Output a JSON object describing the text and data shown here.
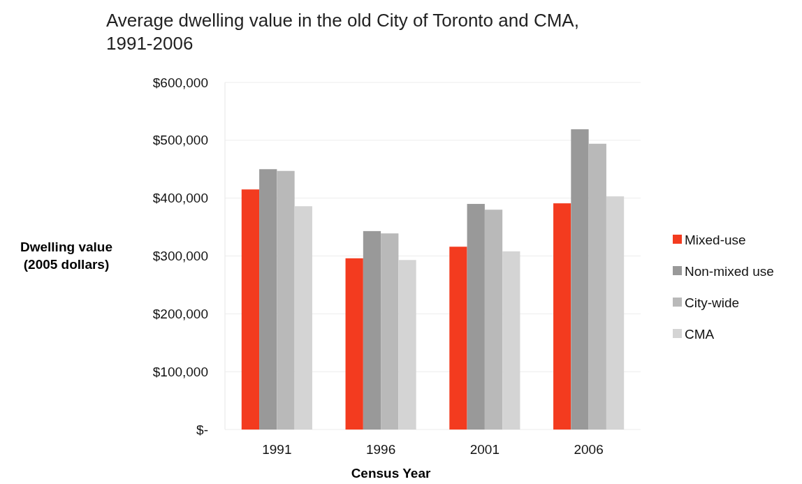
{
  "chart_data": {
    "type": "bar",
    "title": "Average dwelling value in the old City of Toronto and CMA, 1991-2006",
    "xlabel": "Census Year",
    "ylabel": "Dwelling value (2005 dollars)",
    "categories": [
      "1991",
      "1996",
      "2001",
      "2006"
    ],
    "series": [
      {
        "name": "Mixed-use",
        "color": "#f33b1f",
        "values": [
          415000,
          296000,
          316000,
          391000
        ]
      },
      {
        "name": "Non-mixed use",
        "color": "#999999",
        "values": [
          450000,
          343000,
          390000,
          519000
        ]
      },
      {
        "name": "City-wide",
        "color": "#b9b9b9",
        "values": [
          447000,
          339000,
          380000,
          494000
        ]
      },
      {
        "name": "CMA",
        "color": "#d4d4d4",
        "values": [
          386000,
          293000,
          308000,
          403000
        ]
      }
    ],
    "ylim": [
      0,
      600000
    ],
    "yticks": [
      {
        "value": 0,
        "label": "$-"
      },
      {
        "value": 100000,
        "label": "$100,000"
      },
      {
        "value": 200000,
        "label": "$200,000"
      },
      {
        "value": 300000,
        "label": "$300,000"
      },
      {
        "value": 400000,
        "label": "$400,000"
      },
      {
        "value": 500000,
        "label": "$500,000"
      },
      {
        "value": 600000,
        "label": "$600,000"
      }
    ],
    "grid": "y",
    "legend": "right"
  }
}
